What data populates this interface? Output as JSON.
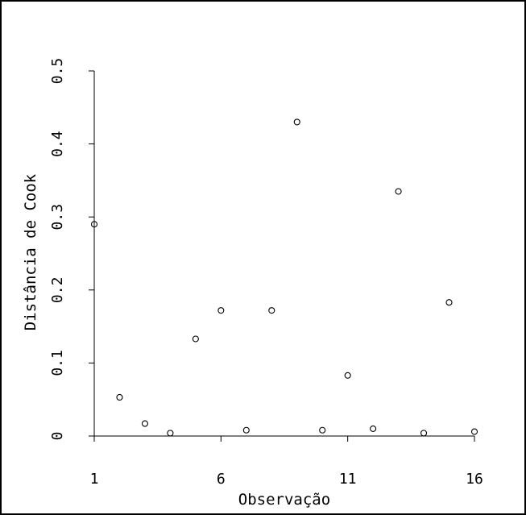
{
  "chart_data": {
    "type": "scatter",
    "xlabel": "Observação",
    "ylabel": "Distância de Cook",
    "xlim": [
      1,
      16
    ],
    "ylim": [
      0,
      0.5
    ],
    "x_ticks": [
      1,
      6,
      11,
      16
    ],
    "y_ticks": [
      0,
      0.1,
      0.2,
      0.3,
      0.4,
      0.5
    ],
    "x_tick_labels": [
      "1",
      "6",
      "11",
      "16"
    ],
    "y_tick_labels": [
      "0",
      "0.1",
      "0.2",
      "0.3",
      "0.4",
      "0.5"
    ],
    "grid": false,
    "marker": "open-circle",
    "series": [
      {
        "x": [
          1,
          2,
          3,
          4,
          5,
          6,
          7,
          8,
          9,
          10,
          11,
          12,
          13,
          14,
          15,
          16
        ],
        "y": [
          0.29,
          0.053,
          0.017,
          0.004,
          0.133,
          0.172,
          0.008,
          0.172,
          0.43,
          0.008,
          0.083,
          0.01,
          0.335,
          0.004,
          0.183,
          0.006
        ]
      }
    ]
  }
}
